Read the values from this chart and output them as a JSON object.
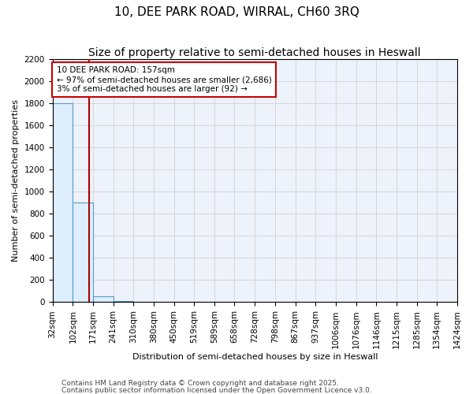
{
  "title_line1": "10, DEE PARK ROAD, WIRRAL, CH60 3RQ",
  "title_line2": "Size of property relative to semi-detached houses in Heswall",
  "xlabel": "Distribution of semi-detached houses by size in Heswall",
  "ylabel": "Number of semi-detached properties",
  "footer_line1": "Contains HM Land Registry data © Crown copyright and database right 2025.",
  "footer_line2": "Contains public sector information licensed under the Open Government Licence v3.0.",
  "bin_edges": [
    32,
    102,
    171,
    241,
    310,
    380,
    450,
    519,
    589,
    658,
    728,
    798,
    867,
    937,
    1006,
    1076,
    1146,
    1215,
    1285,
    1354,
    1424
  ],
  "bin_counts": [
    1800,
    900,
    50,
    10,
    0,
    0,
    0,
    0,
    0,
    0,
    0,
    0,
    0,
    0,
    0,
    0,
    0,
    0,
    0,
    0
  ],
  "bar_fill_color": "#ddeeff",
  "bar_edge_color": "#5599cc",
  "grid_color": "#cccccc",
  "background_color": "#eef2fa",
  "red_line_x": 157,
  "red_line_color": "#aa0000",
  "annotation_text": "10 DEE PARK ROAD: 157sqm\n← 97% of semi-detached houses are smaller (2,686)\n3% of semi-detached houses are larger (92) →",
  "annotation_box_color": "#cc0000",
  "ylim": [
    0,
    2200
  ],
  "yticks": [
    0,
    200,
    400,
    600,
    800,
    1000,
    1200,
    1400,
    1600,
    1800,
    2000,
    2200
  ],
  "title_fontsize": 11,
  "subtitle_fontsize": 10,
  "axis_label_fontsize": 8,
  "tick_fontsize": 7.5,
  "annotation_fontsize": 7.5,
  "footer_fontsize": 6.5
}
